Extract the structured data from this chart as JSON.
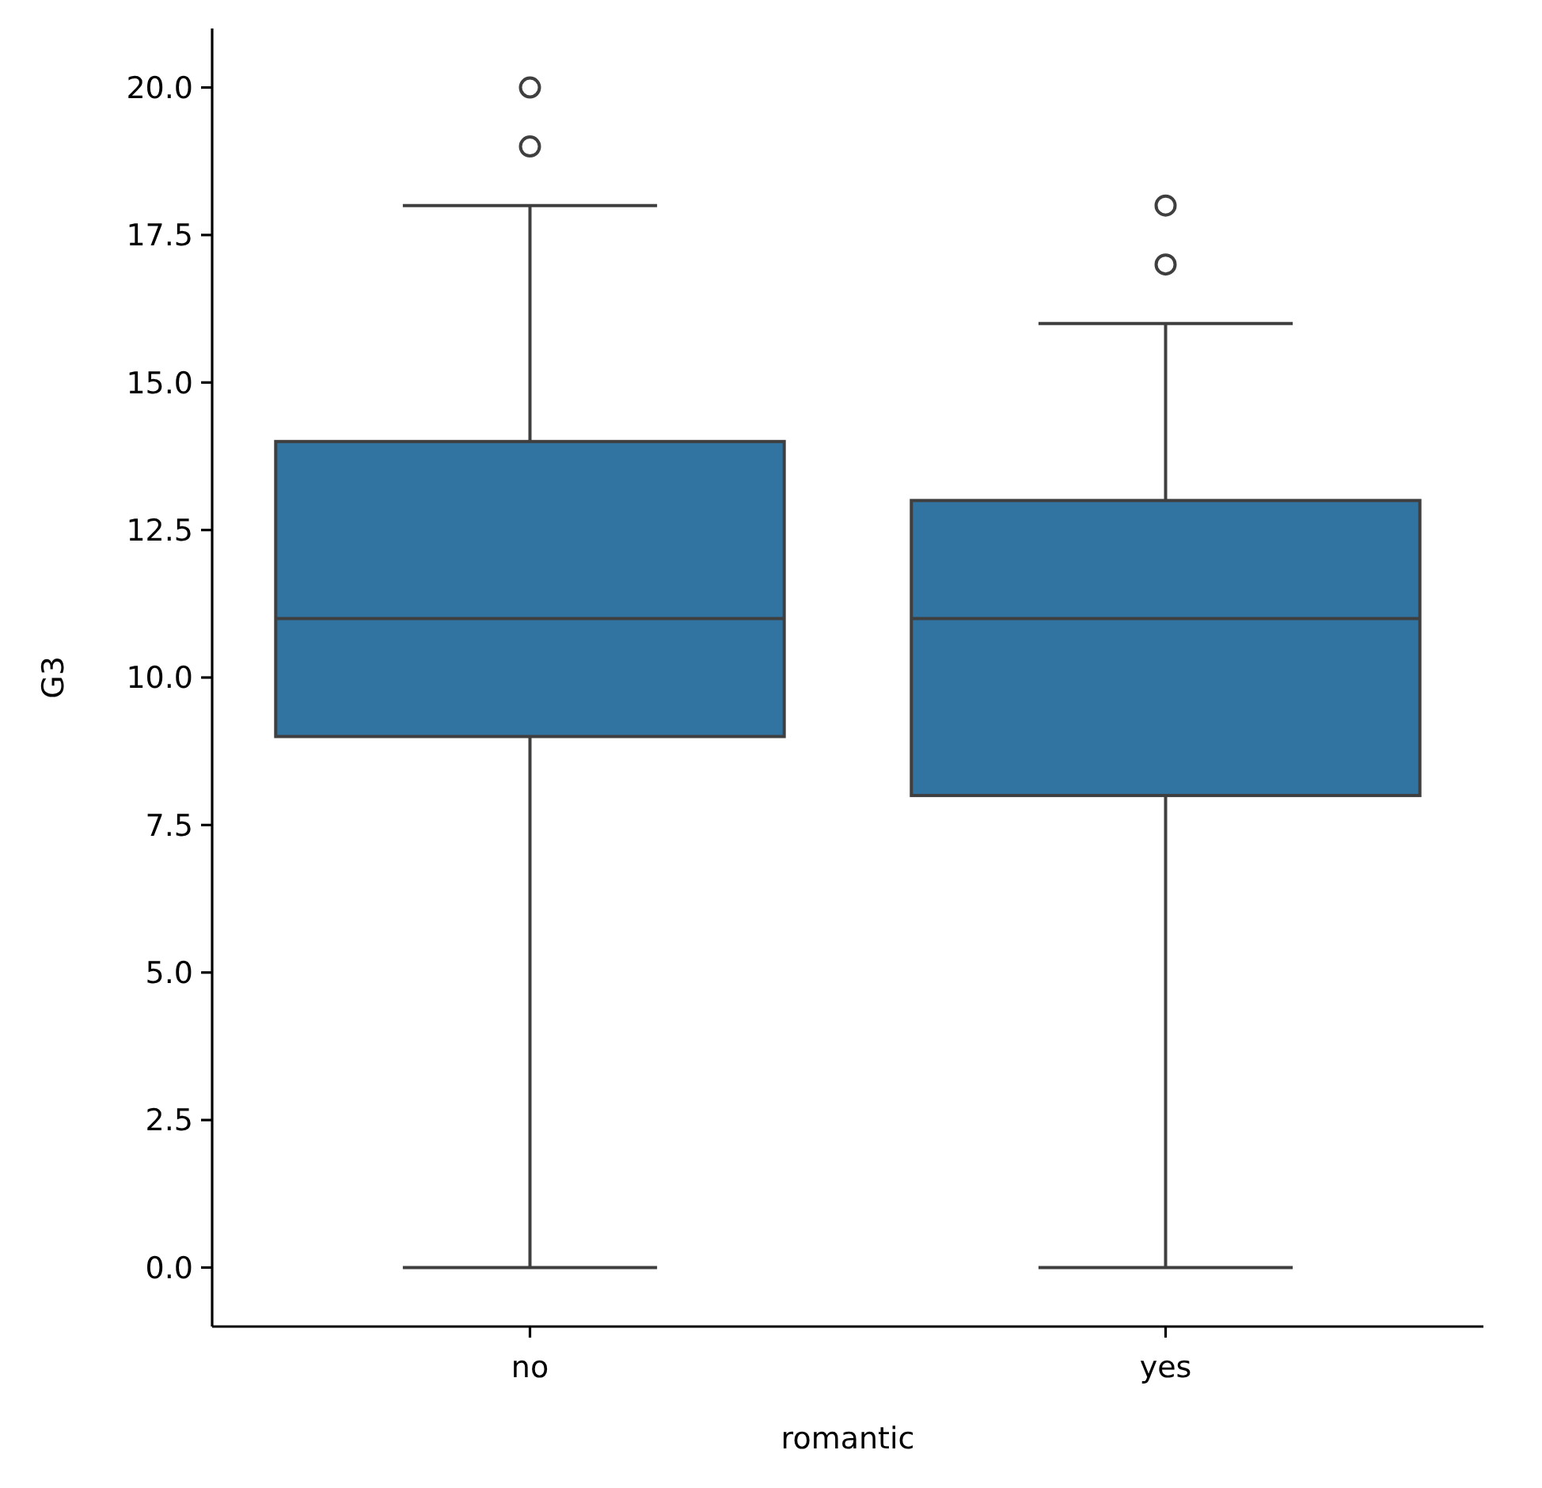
{
  "chart_data": {
    "type": "box",
    "xlabel": "romantic",
    "ylabel": "G3",
    "categories": [
      "no",
      "yes"
    ],
    "color": "#3274a1",
    "boxes": [
      {
        "low": 0,
        "q1": 9,
        "median": 11,
        "q3": 14,
        "high": 18,
        "outliers": [
          19,
          20
        ]
      },
      {
        "low": 0,
        "q1": 8,
        "median": 11,
        "q3": 13,
        "high": 16,
        "outliers": [
          17,
          18
        ]
      }
    ],
    "ylim": [
      -1,
      21
    ],
    "yticks": [
      {
        "value": 0,
        "label": "0.0"
      },
      {
        "value": 2.5,
        "label": "2.5"
      },
      {
        "value": 5,
        "label": "5.0"
      },
      {
        "value": 7.5,
        "label": "7.5"
      },
      {
        "value": 10,
        "label": "10.0"
      },
      {
        "value": 12.5,
        "label": "12.5"
      },
      {
        "value": 15,
        "label": "15.0"
      },
      {
        "value": 17.5,
        "label": "17.5"
      },
      {
        "value": 20,
        "label": "20.0"
      }
    ]
  }
}
